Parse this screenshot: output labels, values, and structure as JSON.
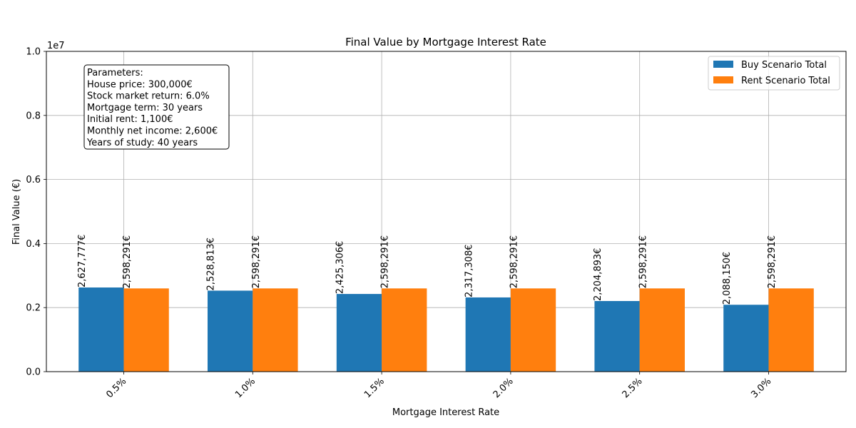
{
  "chart_data": {
    "type": "bar",
    "title": "Final Value by Mortgage Interest Rate",
    "xlabel": "Mortgage Interest Rate",
    "ylabel": "Final Value (€)",
    "y_offset_label": "1e7",
    "ylim": [
      0,
      10000000
    ],
    "yticks": [
      0,
      2000000,
      4000000,
      6000000,
      8000000,
      10000000
    ],
    "ytick_labels": [
      "0.0",
      "0.2",
      "0.4",
      "0.6",
      "0.8",
      "1.0"
    ],
    "grid": true,
    "legend_position": "top-right",
    "categories": [
      "0.5%",
      "1.0%",
      "1.5%",
      "2.0%",
      "2.5%",
      "3.0%"
    ],
    "series": [
      {
        "name": "Buy Scenario Total",
        "color": "#1f77b4",
        "values": [
          2627777,
          2528813,
          2425306,
          2317308,
          2204893,
          2088150
        ],
        "labels": [
          "2,627,777€",
          "2,528,813€",
          "2,425,306€",
          "2,317,308€",
          "2,204,893€",
          "2,088,150€"
        ]
      },
      {
        "name": "Rent Scenario Total",
        "color": "#ff7f0e",
        "values": [
          2598291,
          2598291,
          2598291,
          2598291,
          2598291,
          2598291
        ],
        "labels": [
          "2,598,291€",
          "2,598,291€",
          "2,598,291€",
          "2,598,291€",
          "2,598,291€",
          "2,598,291€"
        ]
      }
    ],
    "annotation": {
      "lines": [
        "Parameters:",
        "House price: 300,000€",
        "Stock market return: 6.0%",
        "Mortgage term: 30 years",
        "Initial rent: 1,100€",
        "Monthly net income: 2,600€",
        "Years of study: 40 years"
      ]
    }
  }
}
